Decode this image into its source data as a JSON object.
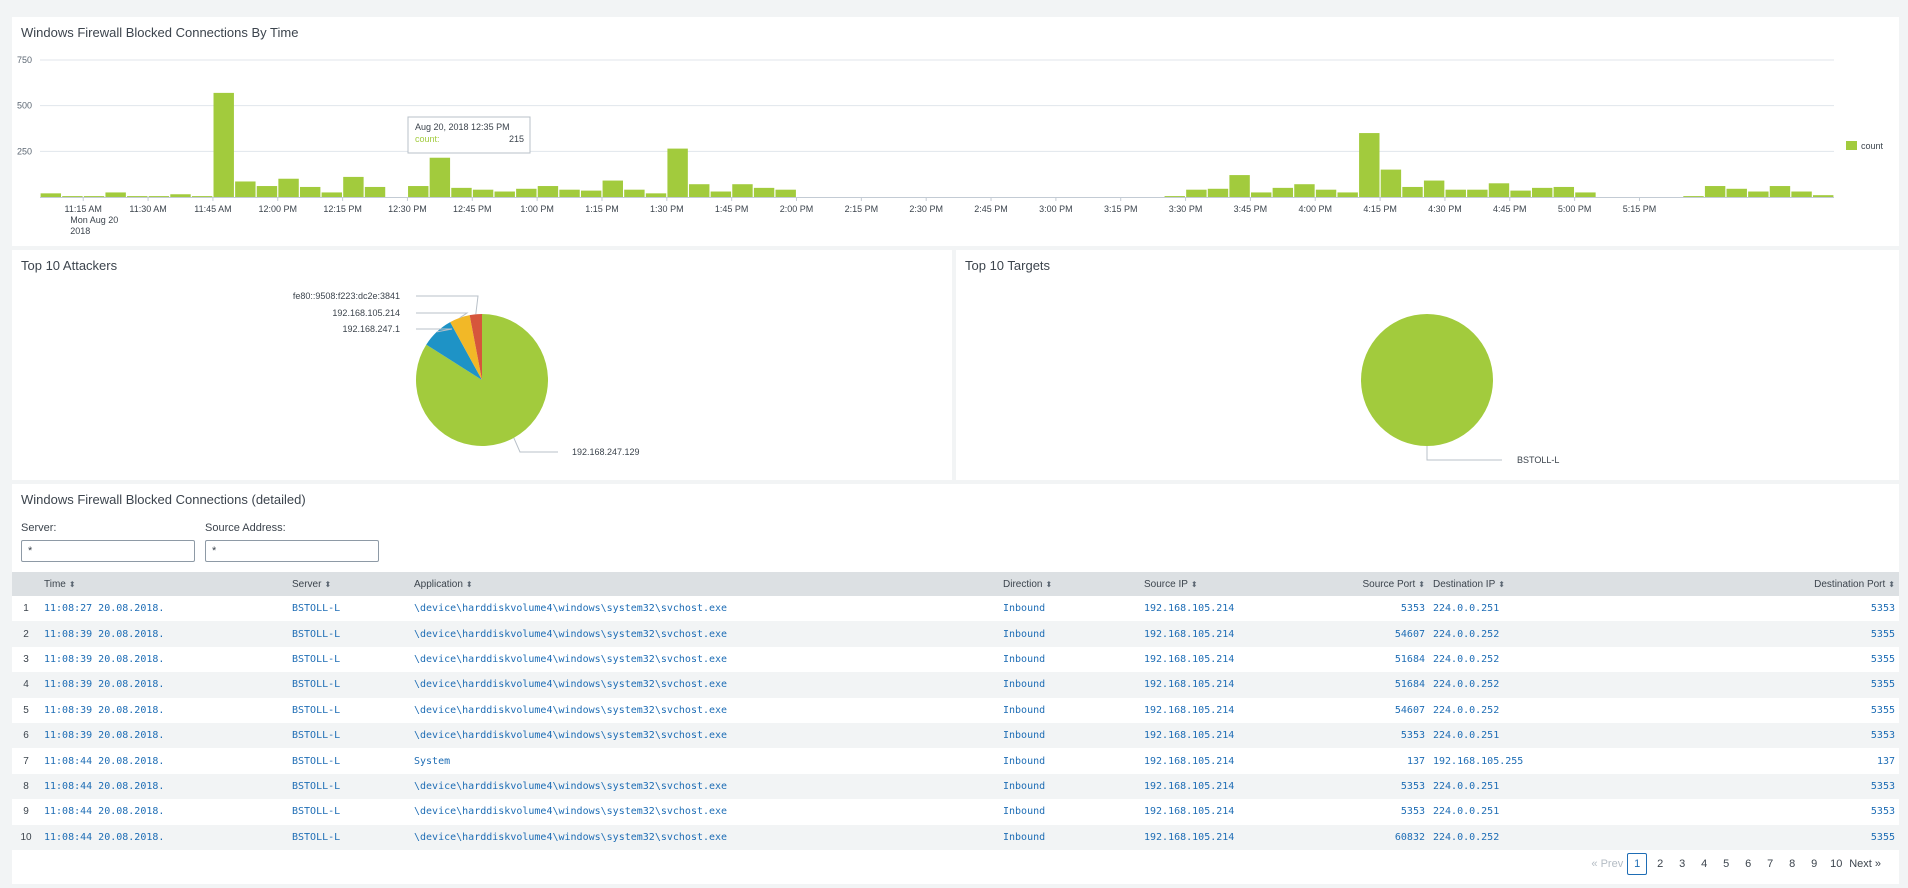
{
  "colors": {
    "count": "#a2cb3d",
    "blue": "#1e93c6",
    "orange": "#f2b827",
    "red": "#d6563c",
    "link": "#1e6db5"
  },
  "timechart": {
    "title": "Windows Firewall Blocked Connections By Time",
    "legend": "count",
    "tooltip": {
      "date": "Aug 20, 2018 12:35 PM",
      "label": "count:",
      "value": "215"
    }
  },
  "attackers": {
    "title": "Top 10 Attackers"
  },
  "targets": {
    "title": "Top 10 Targets"
  },
  "detail": {
    "title": "Windows Firewall Blocked Connections (detailed)",
    "server_label": "Server:",
    "server_value": "*",
    "source_label": "Source Address:",
    "source_value": "*",
    "columns": [
      "Time",
      "Server",
      "Application",
      "Direction",
      "Source IP",
      "Source Port",
      "Destination IP",
      "Destination Port"
    ],
    "rows": [
      [
        "1",
        "11:08:27 20.08.2018.",
        "BSTOLL-L",
        "\\device\\harddiskvolume4\\windows\\system32\\svchost.exe",
        "Inbound",
        "192.168.105.214",
        "5353",
        "224.0.0.251",
        "5353"
      ],
      [
        "2",
        "11:08:39 20.08.2018.",
        "BSTOLL-L",
        "\\device\\harddiskvolume4\\windows\\system32\\svchost.exe",
        "Inbound",
        "192.168.105.214",
        "54607",
        "224.0.0.252",
        "5355"
      ],
      [
        "3",
        "11:08:39 20.08.2018.",
        "BSTOLL-L",
        "\\device\\harddiskvolume4\\windows\\system32\\svchost.exe",
        "Inbound",
        "192.168.105.214",
        "51684",
        "224.0.0.252",
        "5355"
      ],
      [
        "4",
        "11:08:39 20.08.2018.",
        "BSTOLL-L",
        "\\device\\harddiskvolume4\\windows\\system32\\svchost.exe",
        "Inbound",
        "192.168.105.214",
        "51684",
        "224.0.0.252",
        "5355"
      ],
      [
        "5",
        "11:08:39 20.08.2018.",
        "BSTOLL-L",
        "\\device\\harddiskvolume4\\windows\\system32\\svchost.exe",
        "Inbound",
        "192.168.105.214",
        "54607",
        "224.0.0.252",
        "5355"
      ],
      [
        "6",
        "11:08:39 20.08.2018.",
        "BSTOLL-L",
        "\\device\\harddiskvolume4\\windows\\system32\\svchost.exe",
        "Inbound",
        "192.168.105.214",
        "5353",
        "224.0.0.251",
        "5353"
      ],
      [
        "7",
        "11:08:44 20.08.2018.",
        "BSTOLL-L",
        "System",
        "Inbound",
        "192.168.105.214",
        "137",
        "192.168.105.255",
        "137"
      ],
      [
        "8",
        "11:08:44 20.08.2018.",
        "BSTOLL-L",
        "\\device\\harddiskvolume4\\windows\\system32\\svchost.exe",
        "Inbound",
        "192.168.105.214",
        "5353",
        "224.0.0.251",
        "5353"
      ],
      [
        "9",
        "11:08:44 20.08.2018.",
        "BSTOLL-L",
        "\\device\\harddiskvolume4\\windows\\system32\\svchost.exe",
        "Inbound",
        "192.168.105.214",
        "5353",
        "224.0.0.251",
        "5353"
      ],
      [
        "10",
        "11:08:44 20.08.2018.",
        "BSTOLL-L",
        "\\device\\harddiskvolume4\\windows\\system32\\svchost.exe",
        "Inbound",
        "192.168.105.214",
        "60832",
        "224.0.0.252",
        "5355"
      ]
    ],
    "pager": {
      "prev": "« Prev",
      "pages": [
        "1",
        "2",
        "3",
        "4",
        "5",
        "6",
        "7",
        "8",
        "9",
        "10"
      ],
      "current": "1",
      "next": "Next »"
    }
  },
  "chart_data": [
    {
      "type": "bar",
      "title": "Windows Firewall Blocked Connections By Time",
      "interval_minutes": 5,
      "first_bar": "11:05 AM",
      "x_tick_labels": [
        "11:15 AM",
        "11:30 AM",
        "11:45 AM",
        "12:00 PM",
        "12:15 PM",
        "12:30 PM",
        "12:45 PM",
        "1:00 PM",
        "1:15 PM",
        "1:30 PM",
        "1:45 PM",
        "2:00 PM",
        "2:15 PM",
        "2:30 PM",
        "2:45 PM",
        "3:00 PM",
        "3:15 PM",
        "3:30 PM",
        "3:45 PM",
        "4:00 PM",
        "4:15 PM",
        "4:30 PM",
        "4:45 PM",
        "5:00 PM",
        "5:15 PM"
      ],
      "x_date_sub": [
        "Mon Aug 20",
        "2018"
      ],
      "y_ticks": [
        250,
        500,
        750
      ],
      "ylim": [
        0,
        750
      ],
      "series": [
        {
          "name": "count",
          "values": [
            20,
            5,
            5,
            25,
            5,
            5,
            15,
            5,
            570,
            85,
            60,
            100,
            55,
            25,
            110,
            55,
            0,
            60,
            215,
            50,
            40,
            30,
            45,
            60,
            40,
            35,
            90,
            40,
            20,
            265,
            70,
            30,
            70,
            50,
            40,
            0,
            0,
            0,
            0,
            0,
            0,
            0,
            0,
            0,
            0,
            0,
            0,
            0,
            0,
            0,
            0,
            0,
            5,
            40,
            45,
            120,
            25,
            50,
            70,
            40,
            25,
            350,
            150,
            55,
            90,
            40,
            40,
            75,
            35,
            50,
            55,
            25,
            0,
            0,
            0,
            0,
            5,
            60,
            45,
            30,
            60,
            30,
            10
          ]
        }
      ],
      "legend": "right",
      "grid": true
    },
    {
      "type": "pie",
      "title": "Top 10 Attackers",
      "labels": [
        "192.168.247.129",
        "192.168.247.1",
        "192.168.105.214",
        "fe80::9508:f223:dc2e:3841"
      ],
      "values": [
        84,
        8,
        5,
        3
      ],
      "colors": [
        "#a2cb3d",
        "#1e93c6",
        "#f2b827",
        "#d6563c"
      ]
    },
    {
      "type": "pie",
      "title": "Top 10 Targets",
      "labels": [
        "BSTOLL-L"
      ],
      "values": [
        100
      ],
      "colors": [
        "#a2cb3d"
      ]
    }
  ]
}
